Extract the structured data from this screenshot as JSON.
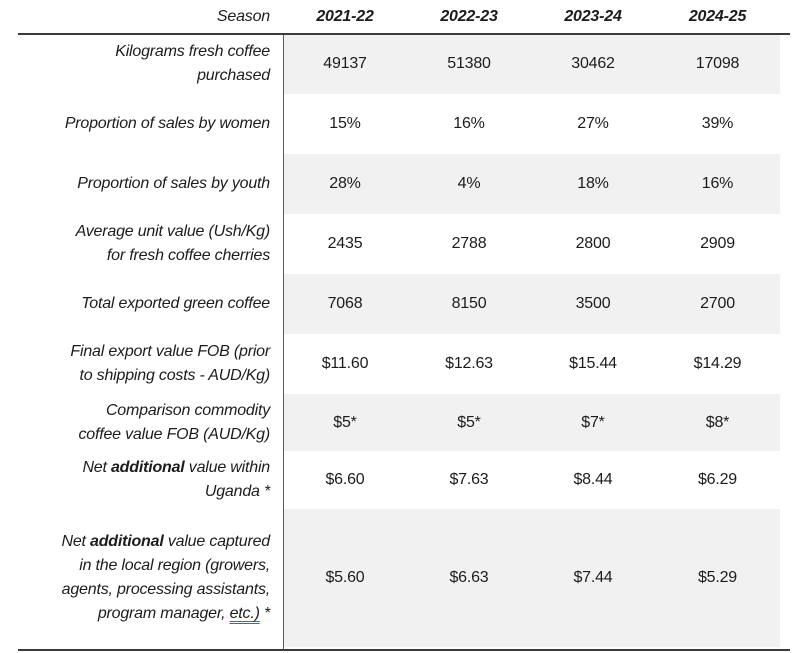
{
  "table": {
    "season_label": "Season",
    "columns": [
      "2021-22",
      "2022-23",
      "2023-24",
      "2024-25"
    ],
    "rows": [
      {
        "shaded": true,
        "label_parts": [
          {
            "t": "Kilograms fresh coffee\npurchased"
          }
        ],
        "values": [
          "49137",
          "51380",
          "30462",
          "17098"
        ]
      },
      {
        "shaded": false,
        "label_parts": [
          {
            "t": "Proportion of sales by women"
          }
        ],
        "values": [
          "15%",
          "16%",
          "27%",
          "39%"
        ]
      },
      {
        "shaded": true,
        "label_parts": [
          {
            "t": "Proportion of sales by youth"
          }
        ],
        "values": [
          "28%",
          "4%",
          "18%",
          "16%"
        ]
      },
      {
        "shaded": false,
        "label_parts": [
          {
            "t": "Average unit value (Ush/Kg)\nfor fresh coffee cherries"
          }
        ],
        "values": [
          "2435",
          "2788",
          "2800",
          "2909"
        ]
      },
      {
        "shaded": true,
        "label_parts": [
          {
            "t": "Total exported green coffee"
          }
        ],
        "values": [
          "7068",
          "8150",
          "3500",
          "2700"
        ]
      },
      {
        "shaded": false,
        "label_parts": [
          {
            "t": "Final export value FOB (prior\nto shipping costs - AUD/Kg)"
          }
        ],
        "values": [
          "$11.60",
          "$12.63",
          "$15.44",
          "$14.29"
        ]
      },
      {
        "shaded": true,
        "label_parts": [
          {
            "t": "Comparison commodity\ncoffee value FOB (AUD/Kg)"
          }
        ],
        "values": [
          "$5*",
          "$5*",
          "$7*",
          "$8*"
        ]
      },
      {
        "shaded": false,
        "label_parts": [
          {
            "t": "Net "
          },
          {
            "t": "additional",
            "b": true
          },
          {
            "t": " value within\nUganda *"
          }
        ],
        "values": [
          "$6.60",
          "$7.63",
          "$8.44",
          "$6.29"
        ]
      },
      {
        "shaded": true,
        "label_parts": [
          {
            "t": "Net "
          },
          {
            "t": "additional",
            "b": true
          },
          {
            "t": " value captured\nin the local region (growers,\nagents, processing assistants,\nprogram manager, "
          },
          {
            "t": "etc.)",
            "u": true
          },
          {
            "t": " *"
          }
        ],
        "values": [
          "$5.60",
          "$6.63",
          "$7.44",
          "$5.29"
        ]
      }
    ]
  },
  "colors": {
    "shaded_row_bg": "#f1f1f1",
    "text": "#1c1c1c",
    "rule": "#3b3b3b",
    "divider": "#5a5a5a",
    "grammar_underline": "#2b6bd4"
  }
}
